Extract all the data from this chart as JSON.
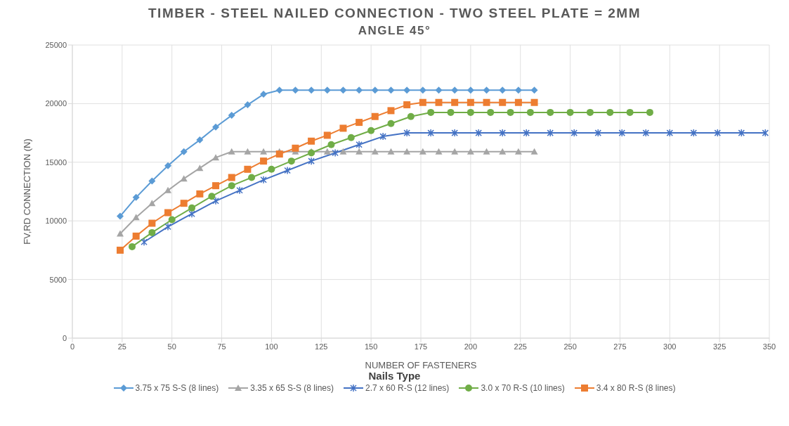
{
  "chart_data": {
    "type": "line",
    "title": "TIMBER - STEEL NAILED CONNECTION - TWO STEEL PLATE = 2MM",
    "subtitle": "ANGLE 45°",
    "xlabel": "NUMBER OF FASTENERS",
    "ylabel": "FV,RD CONNECTION (N)",
    "legend_title": "Nails Type",
    "legend": "bottom",
    "grid": true,
    "xlim": [
      0,
      350
    ],
    "xticks": [
      0,
      25,
      50,
      75,
      100,
      125,
      150,
      175,
      200,
      225,
      250,
      275,
      300,
      325,
      350
    ],
    "ylim": [
      0,
      25000
    ],
    "yticks": [
      0,
      5000,
      10000,
      15000,
      20000,
      25000
    ],
    "series": [
      {
        "name": "3.75 x 75 S-S (8 lines)",
        "color": "#5b9bd5",
        "marker": "diamond",
        "x": [
          24,
          32,
          40,
          48,
          56,
          64,
          72,
          80,
          88,
          96,
          104,
          112,
          120,
          128,
          136,
          144,
          152,
          160,
          168,
          176,
          184,
          192,
          200,
          208,
          216,
          224,
          232
        ],
        "values": [
          10400,
          12000,
          13400,
          14700,
          15900,
          16900,
          18000,
          19000,
          19900,
          20800,
          21150,
          21150,
          21150,
          21150,
          21150,
          21150,
          21150,
          21150,
          21150,
          21150,
          21150,
          21150,
          21150,
          21150,
          21150,
          21150,
          21150
        ]
      },
      {
        "name": "3.35 x 65 S-S (8 lines)",
        "color": "#a5a5a5",
        "marker": "triangle",
        "x": [
          24,
          32,
          40,
          48,
          56,
          64,
          72,
          80,
          88,
          96,
          104,
          112,
          120,
          128,
          136,
          144,
          152,
          160,
          168,
          176,
          184,
          192,
          200,
          208,
          216,
          224,
          232
        ],
        "values": [
          8900,
          10300,
          11500,
          12600,
          13600,
          14500,
          15400,
          15900,
          15900,
          15900,
          15900,
          15900,
          15900,
          15900,
          15900,
          15900,
          15900,
          15900,
          15900,
          15900,
          15900,
          15900,
          15900,
          15900,
          15900,
          15900,
          15900
        ]
      },
      {
        "name": "2.7 x 60 R-S (12 lines)",
        "color": "#4472c4",
        "marker": "cross",
        "x": [
          36,
          48,
          60,
          72,
          84,
          96,
          108,
          120,
          132,
          144,
          156,
          168,
          180,
          192,
          204,
          216,
          228,
          240,
          252,
          264,
          276,
          288,
          300,
          312,
          324,
          336,
          348
        ],
        "values": [
          8200,
          9500,
          10600,
          11700,
          12600,
          13500,
          14300,
          15100,
          15800,
          16500,
          17200,
          17500,
          17500,
          17500,
          17500,
          17500,
          17500,
          17500,
          17500,
          17500,
          17500,
          17500,
          17500,
          17500,
          17500,
          17500,
          17500
        ]
      },
      {
        "name": "3.0 x 70 R-S (10 lines)",
        "color": "#70ad47",
        "marker": "circle",
        "x": [
          30,
          40,
          50,
          60,
          70,
          80,
          90,
          100,
          110,
          120,
          130,
          140,
          150,
          160,
          170,
          180,
          190,
          200,
          210,
          220,
          230,
          240,
          250,
          260,
          270,
          280,
          290
        ],
        "values": [
          7800,
          9000,
          10100,
          11100,
          12100,
          13000,
          13700,
          14400,
          15100,
          15800,
          16500,
          17100,
          17700,
          18300,
          18900,
          19250,
          19250,
          19250,
          19250,
          19250,
          19250,
          19250,
          19250,
          19250,
          19250,
          19250,
          19250
        ]
      },
      {
        "name": "3.4 x 80 R-S (8 lines)",
        "color": "#ed7d31",
        "marker": "square",
        "x": [
          24,
          32,
          40,
          48,
          56,
          64,
          72,
          80,
          88,
          96,
          104,
          112,
          120,
          128,
          136,
          144,
          152,
          160,
          168,
          176,
          184,
          192,
          200,
          208,
          216,
          224,
          232
        ],
        "values": [
          7500,
          8700,
          9800,
          10700,
          11500,
          12300,
          13000,
          13700,
          14400,
          15100,
          15700,
          16200,
          16800,
          17300,
          17900,
          18400,
          18900,
          19400,
          19900,
          20100,
          20100,
          20100,
          20100,
          20100,
          20100,
          20100,
          20100
        ]
      }
    ]
  }
}
